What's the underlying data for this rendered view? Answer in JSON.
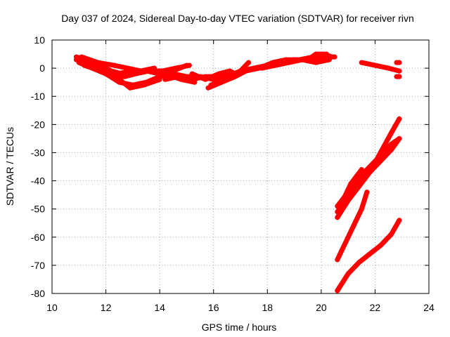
{
  "chart_data": {
    "type": "scatter",
    "title": "Day 037 of 2024, Sidereal Day-to-day VTEC variation (SDTVAR) for receiver rivn",
    "xlabel": "GPS time / hours",
    "ylabel": "SDTVAR / TECUs",
    "xlim": [
      10,
      24
    ],
    "ylim": [
      -80,
      10
    ],
    "xticks": [
      10,
      12,
      14,
      16,
      18,
      20,
      22,
      24
    ],
    "yticks": [
      10,
      0,
      -10,
      -20,
      -30,
      -40,
      -50,
      -60,
      -70,
      -80
    ],
    "grid": true,
    "legend": "none",
    "color": "#ff0000",
    "series": [
      {
        "x": [
          10.9,
          11.3,
          11.8,
          12.2,
          12.6,
          13.0,
          13.5,
          14.0,
          14.5,
          15.0
        ],
        "y": [
          4,
          3,
          1,
          -1,
          -2,
          -1,
          -1,
          -2,
          -1,
          1
        ]
      },
      {
        "x": [
          10.9,
          11.4,
          11.9,
          12.3,
          12.7,
          13.1,
          13.6,
          14.1,
          14.6,
          15.1
        ],
        "y": [
          3,
          2,
          -1,
          -3,
          -3,
          -2,
          -1,
          -1,
          0,
          1
        ]
      },
      {
        "x": [
          11.0,
          11.5,
          12.0,
          12.5,
          13.0,
          13.5,
          14.0
        ],
        "y": [
          2,
          0,
          -2,
          -5,
          -6,
          -5,
          -3
        ]
      },
      {
        "x": [
          11.0,
          11.5,
          12.0,
          12.5,
          12.9,
          13.4,
          14.0
        ],
        "y": [
          3,
          1,
          -2,
          -4,
          -7,
          -6,
          -4
        ]
      },
      {
        "x": [
          11.2,
          11.8,
          12.4,
          13.0,
          13.6,
          14.2,
          14.8,
          15.3
        ],
        "y": [
          1,
          -1,
          -2,
          -1,
          -1,
          -2,
          -4,
          -5
        ]
      },
      {
        "x": [
          11.1,
          11.7,
          12.3,
          12.8,
          13.3,
          13.8
        ],
        "y": [
          4,
          2,
          1,
          0,
          -1,
          0
        ]
      },
      {
        "x": [
          14.0,
          14.5,
          15.0,
          15.5,
          16.0,
          16.5,
          17.0,
          17.5,
          18.0,
          18.5,
          19.0,
          19.5,
          20.0,
          20.5
        ],
        "y": [
          -3,
          -2,
          -3,
          -3,
          -4,
          -3,
          -1,
          0,
          1,
          2,
          3,
          3,
          4,
          4
        ]
      },
      {
        "x": [
          14.2,
          14.7,
          15.2,
          15.7,
          16.2,
          16.7,
          17.2,
          17.7,
          18.2,
          18.7,
          19.2,
          19.7,
          20.2
        ],
        "y": [
          -4,
          -3,
          -4,
          -3,
          -3,
          -2,
          -1,
          0,
          2,
          3,
          3,
          4,
          5
        ]
      },
      {
        "x": [
          15.2,
          15.7,
          16.2,
          16.6,
          16.8
        ],
        "y": [
          -2,
          -4,
          -2,
          -1,
          -2
        ]
      },
      {
        "x": [
          15.8,
          16.3,
          16.8,
          17.2,
          17.6
        ],
        "y": [
          -7,
          -5,
          -3,
          -1,
          0
        ]
      },
      {
        "x": [
          15.9,
          16.4,
          16.9,
          17.3
        ],
        "y": [
          -6,
          -4,
          -2,
          2
        ]
      },
      {
        "x": [
          17.8,
          18.3,
          18.8,
          19.3,
          19.8,
          20.3
        ],
        "y": [
          0,
          1,
          2,
          3,
          2,
          3
        ]
      },
      {
        "x": [
          19.5,
          19.8,
          20.1,
          20.4
        ],
        "y": [
          3,
          5,
          5,
          4
        ]
      },
      {
        "x": [
          21.5,
          22.0,
          22.5,
          22.9
        ],
        "y": [
          2,
          1,
          0,
          -1
        ]
      },
      {
        "x": [
          22.8,
          22.9
        ],
        "y": [
          2,
          2
        ]
      },
      {
        "x": [
          22.8,
          22.9
        ],
        "y": [
          -3,
          -3
        ]
      },
      {
        "x": [
          20.6,
          21.0,
          21.4,
          21.8,
          22.2,
          22.6,
          22.9
        ],
        "y": [
          -49,
          -44,
          -39,
          -35,
          -31,
          -27,
          -25
        ]
      },
      {
        "x": [
          20.6,
          21.0,
          21.4,
          21.8,
          22.2,
          22.6,
          22.9
        ],
        "y": [
          -51,
          -46,
          -41,
          -37,
          -33,
          -29,
          -25
        ]
      },
      {
        "x": [
          20.6,
          21.0,
          21.4,
          21.8,
          22.2,
          22.6,
          22.9
        ],
        "y": [
          -53,
          -47,
          -42,
          -37,
          -30,
          -23,
          -18
        ]
      },
      {
        "x": [
          20.7,
          21.1,
          21.5
        ],
        "y": [
          -49,
          -41,
          -36
        ]
      },
      {
        "x": [
          20.6,
          20.9,
          21.2,
          21.5,
          21.7
        ],
        "y": [
          -68,
          -62,
          -56,
          -50,
          -44
        ]
      },
      {
        "x": [
          20.6,
          21.0,
          21.4,
          21.8,
          22.2,
          22.6,
          22.9
        ],
        "y": [
          -79,
          -73,
          -69,
          -66,
          -63,
          -59,
          -54
        ]
      }
    ]
  }
}
